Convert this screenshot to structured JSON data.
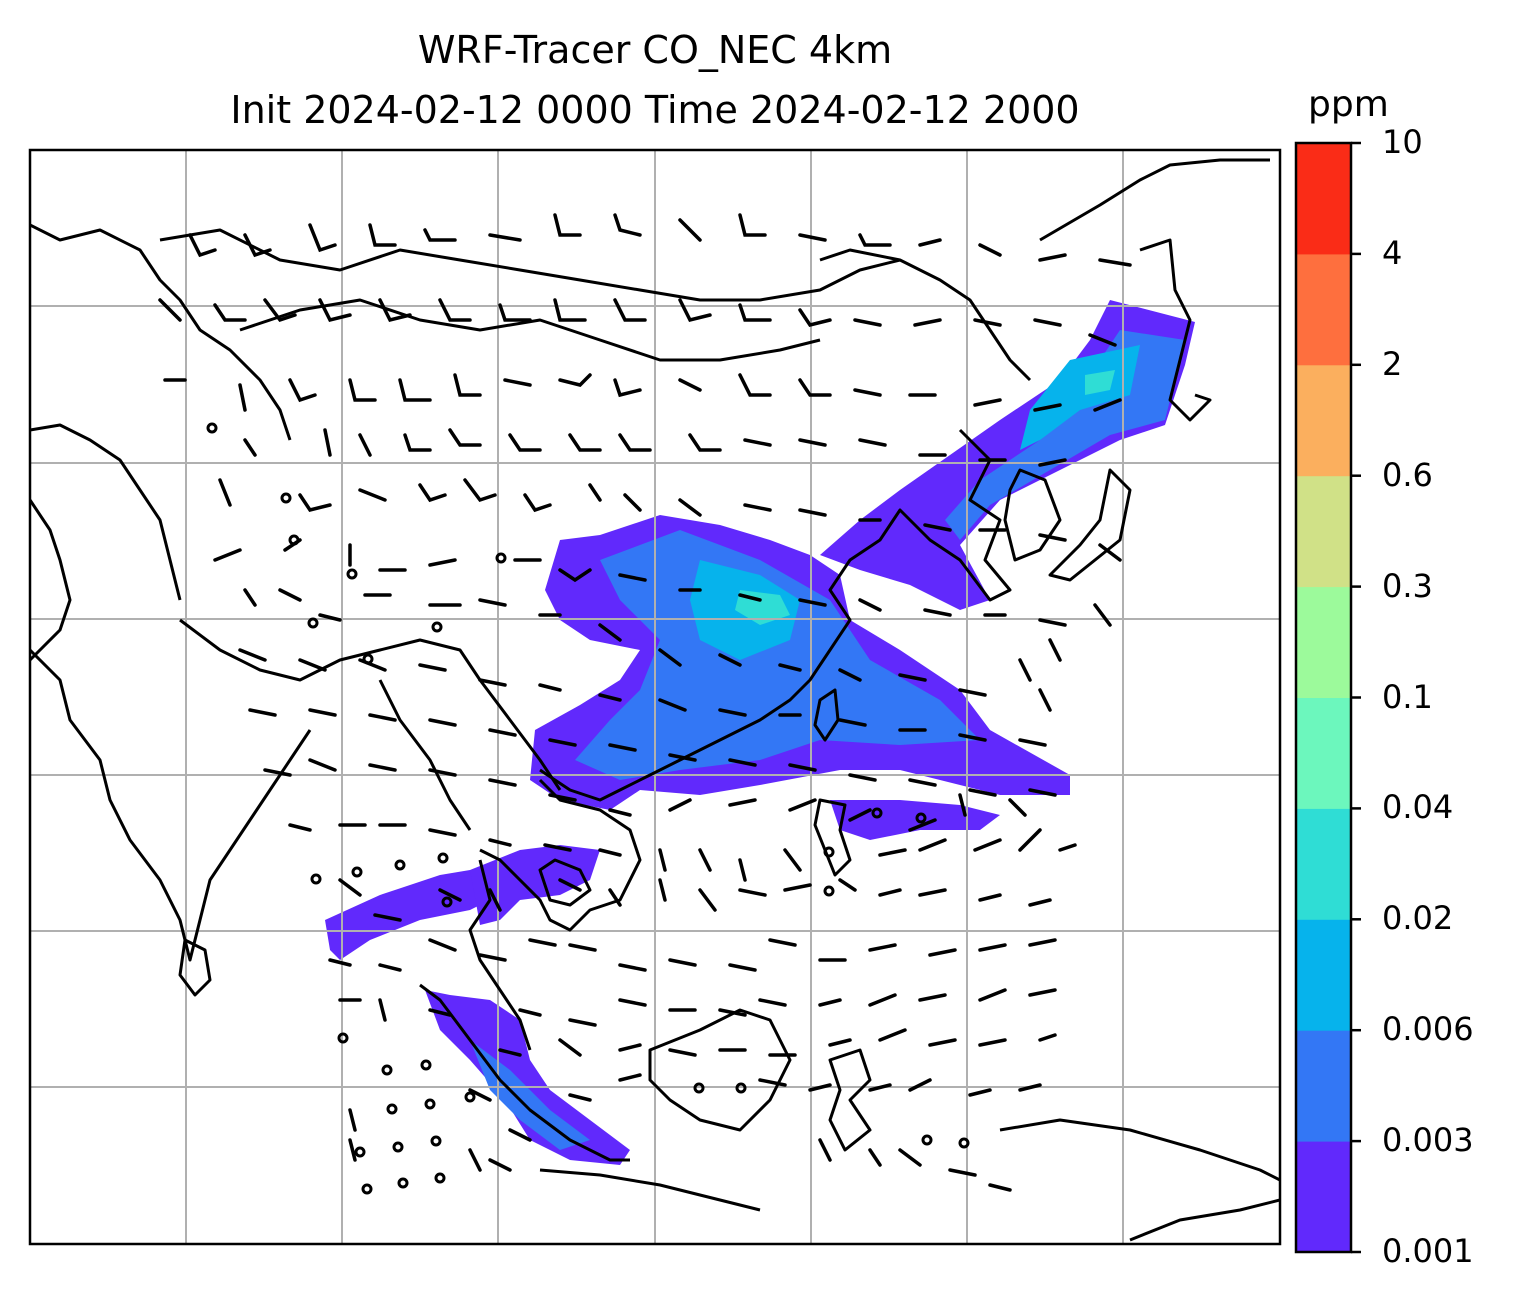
{
  "title": {
    "line1": "WRF-Tracer CO_NEC 4km",
    "line2": "Init 2024-02-12 0000 Time 2024-02-12 2000"
  },
  "colorbar": {
    "unit": "ppm",
    "levels": [
      "0.001",
      "0.003",
      "0.006",
      "0.02",
      "0.04",
      "0.1",
      "0.3",
      "0.6",
      "2",
      "4",
      "10"
    ],
    "colors": [
      "#6129fc",
      "#3377f5",
      "#06b3ec",
      "#2fddd5",
      "#6cf7bd",
      "#9cfa9b",
      "#d0e187",
      "#fbaf5e",
      "#fe6f3e",
      "#fa2c17"
    ]
  },
  "map": {
    "gridlines": true,
    "coastline_color": "#000000",
    "wind_barbs": true
  }
}
